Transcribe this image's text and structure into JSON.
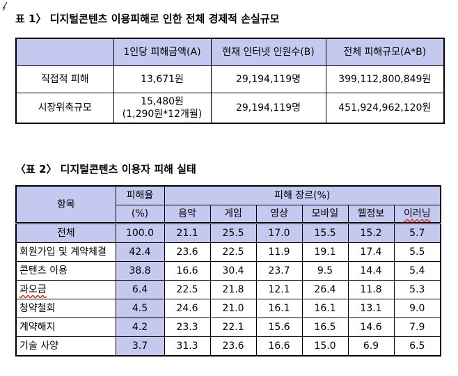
{
  "table1": {
    "title": "표 1〉 디지털콘텐츠 이용피해로 인한 전체 경제적 손실규모",
    "headers": [
      "",
      "1인당 피해금액(A)",
      "현재 인터넷 인원수(B)",
      "전체 피해규모(A*B)"
    ],
    "rows": [
      {
        "label": "직접적 피해",
        "a": "13,671원",
        "a2": "",
        "b": "29,194,119명",
        "ab": "399,112,800,849원"
      },
      {
        "label": "시장위축규모",
        "a": "15,480원",
        "a2": "(1,290원*12개월)",
        "b": "29,194,119명",
        "ab": "451,924,962,120원"
      }
    ]
  },
  "table2": {
    "title": "〈표 2〉 디지털콘텐츠 이용자 피해 실태",
    "col_item": "항목",
    "col_rate": "피해율",
    "col_rate_unit": "(%)",
    "col_genre": "피해 장르(%)",
    "genres": [
      "음악",
      "게임",
      "영상",
      "모바일",
      "웹정보",
      "이러닝"
    ],
    "rows": [
      {
        "label": "전체",
        "rate": "100.0",
        "values": [
          "21.1",
          "25.5",
          "17.0",
          "15.5",
          "15.2",
          "5.7"
        ]
      },
      {
        "label": "회원가입 및 계약체결",
        "rate": "42.4",
        "values": [
          "23.6",
          "22.5",
          "11.9",
          "19.1",
          "17.4",
          "5.5"
        ]
      },
      {
        "label": "콘텐츠 이용",
        "rate": "38.8",
        "values": [
          "16.6",
          "30.4",
          "23.7",
          "9.5",
          "14.4",
          "5.4"
        ]
      },
      {
        "label": "과오금",
        "rate": "6.4",
        "values": [
          "22.5",
          "21.8",
          "12.1",
          "26.4",
          "11.8",
          "5.3"
        ]
      },
      {
        "label": "청약철회",
        "rate": "4.5",
        "values": [
          "24.6",
          "21.0",
          "16.1",
          "16.1",
          "13.1",
          "9.0"
        ]
      },
      {
        "label": "계약해지",
        "rate": "4.2",
        "values": [
          "23.3",
          "22.1",
          "15.6",
          "16.5",
          "14.6",
          "7.9"
        ]
      },
      {
        "label": "기술 사양",
        "rate": "3.7",
        "values": [
          "31.3",
          "23.6",
          "16.6",
          "15.0",
          "6.9",
          "6.5"
        ]
      }
    ]
  }
}
